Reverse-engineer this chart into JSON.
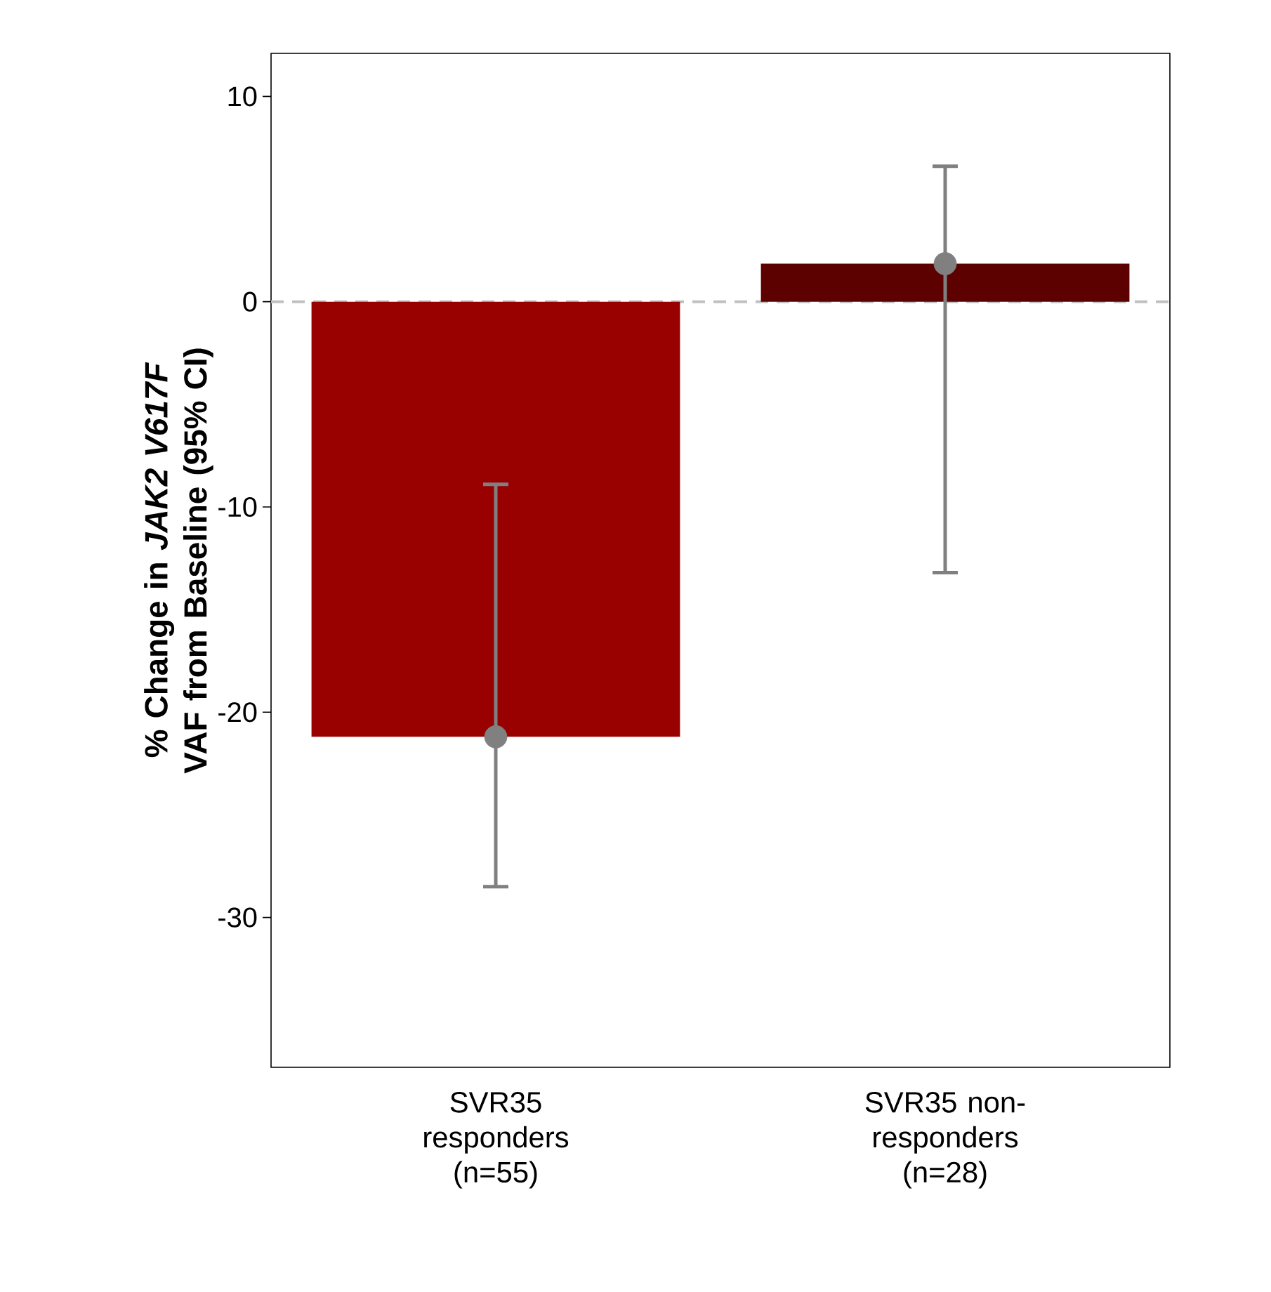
{
  "chart_data": {
    "type": "bar",
    "ylabel": "% Change in *JAK2 V617F* VAF from Baseline (95% CI)",
    "categories": [
      "SVR35 responders (n=55)",
      "SVR35 non-responders (n=28)"
    ],
    "series": [
      {
        "colors": [
          "#990000",
          "#5c0000"
        ],
        "values": [
          -21.2,
          1.85
        ]
      },
      {
        "type": "scatter",
        "marker": "circle",
        "color": "#808080",
        "x": [
          "SVR35 responders (n=55)",
          "SVR35 non-responders (n=28)"
        ],
        "values": [
          -21.2,
          1.85
        ],
        "errors": [
          [
            -28.5,
            -8.9
          ],
          [
            -13.2,
            6.6
          ]
        ]
      }
    ],
    "ylim": [
      -37.3,
      12.1
    ],
    "yticks": [
      -30,
      -20,
      -10,
      0,
      10
    ],
    "ref_lines": [
      {
        "axis": "y",
        "value": 0,
        "color": "#c0c0c0",
        "line_style": "dashed"
      }
    ],
    "grid": false
  }
}
